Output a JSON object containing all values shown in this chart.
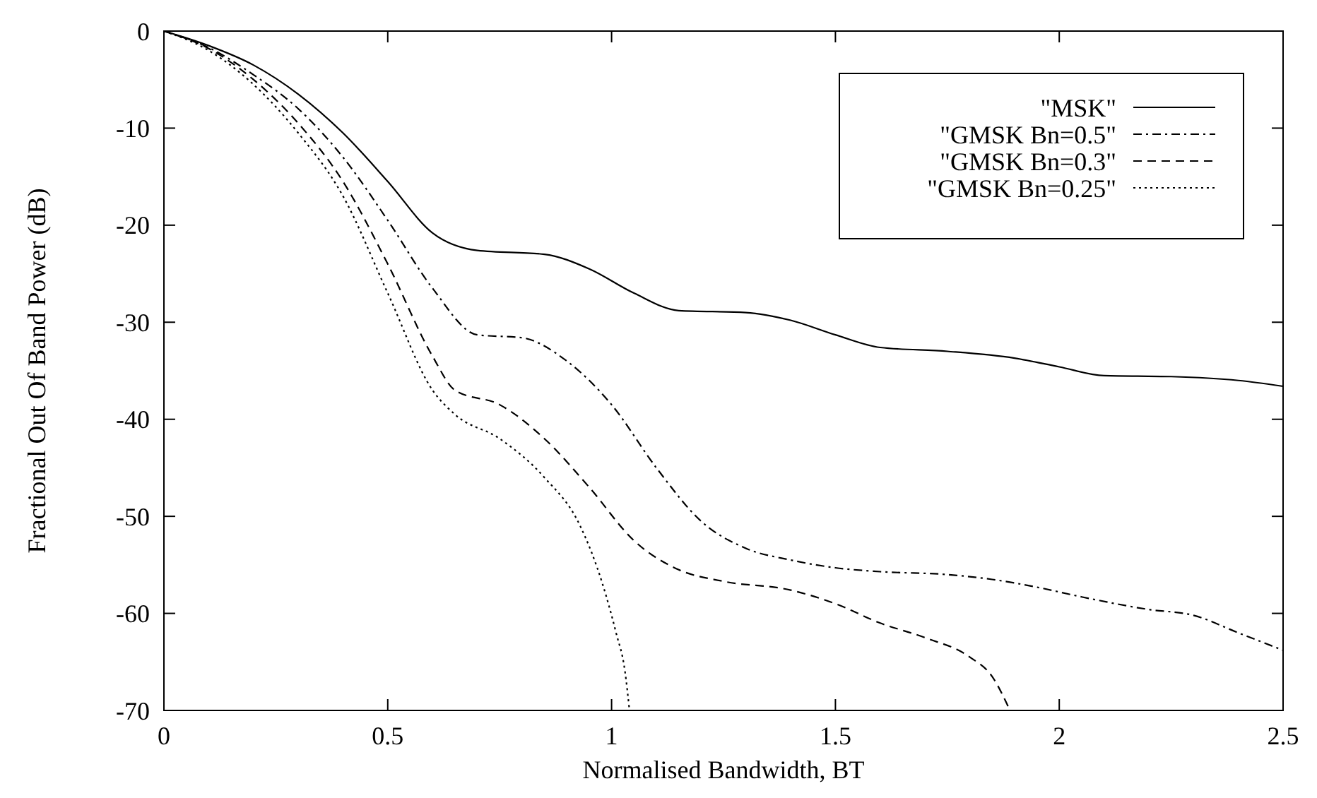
{
  "chart_data": {
    "type": "line",
    "xlabel": "Normalised Bandwidth, BT",
    "ylabel": "Fractional Out Of Band Power (dB)",
    "xlim": [
      0,
      2.5
    ],
    "ylim": [
      -70,
      0
    ],
    "xticks": [
      0,
      0.5,
      1,
      1.5,
      2,
      2.5
    ],
    "yticks": [
      -70,
      -60,
      -50,
      -40,
      -30,
      -20,
      -10,
      0
    ],
    "grid": false,
    "legend": "top right",
    "marker": "none",
    "series": [
      {
        "name": "\"MSK\"",
        "color": "#000000",
        "line_style": "solid",
        "x": [
          0,
          0.1,
          0.2,
          0.3,
          0.4,
          0.5,
          0.6,
          0.7,
          0.85,
          0.95,
          1.05,
          1.15,
          1.3,
          1.4,
          1.5,
          1.6,
          1.75,
          1.9,
          2.0,
          2.1,
          2.25,
          2.4,
          2.5
        ],
        "values": [
          0,
          -1.5,
          -3.5,
          -6.5,
          -10.5,
          -15.5,
          -20.8,
          -22.6,
          -23,
          -24.5,
          -27,
          -28.8,
          -29,
          -29.8,
          -31.3,
          -32.6,
          -33,
          -33.7,
          -34.6,
          -35.5,
          -35.6,
          -36,
          -36.6
        ]
      },
      {
        "name": "\"GMSK Bn=0.5\"",
        "color": "#000000",
        "line_style": "dashdot",
        "x": [
          0,
          0.1,
          0.2,
          0.3,
          0.4,
          0.5,
          0.6,
          0.7,
          0.8,
          0.9,
          1.0,
          1.1,
          1.2,
          1.3,
          1.4,
          1.5,
          1.6,
          1.75,
          1.85,
          1.95,
          2.05,
          2.2,
          2.3,
          2.4,
          2.5
        ],
        "values": [
          0,
          -1.7,
          -4.5,
          -8,
          -13,
          -19.5,
          -26.5,
          -31.3,
          -31.6,
          -34,
          -38.5,
          -45,
          -50.5,
          -53.3,
          -54.5,
          -55.3,
          -55.7,
          -56,
          -56.5,
          -57.3,
          -58.3,
          -59.6,
          -60.2,
          -62,
          -63.8
        ]
      },
      {
        "name": "\"GMSK Bn=0.3\"",
        "color": "#000000",
        "line_style": "dashed",
        "x": [
          0,
          0.1,
          0.2,
          0.3,
          0.4,
          0.5,
          0.6,
          0.65,
          0.75,
          0.85,
          0.95,
          1.05,
          1.15,
          1.25,
          1.4,
          1.5,
          1.6,
          1.7,
          1.8,
          1.85,
          1.89
        ],
        "values": [
          0,
          -1.8,
          -5,
          -9.5,
          -15.5,
          -24,
          -33.5,
          -37,
          -38.5,
          -42,
          -47,
          -52.5,
          -55.5,
          -56.7,
          -57.6,
          -59,
          -61,
          -62.5,
          -64.5,
          -66.5,
          -70
        ]
      },
      {
        "name": "\"GMSK Bn=0.25\"",
        "color": "#000000",
        "line_style": "dotted",
        "x": [
          0,
          0.1,
          0.2,
          0.3,
          0.4,
          0.5,
          0.6,
          0.65,
          0.75,
          0.85,
          0.93,
          0.98,
          1.01,
          1.03,
          1.04
        ],
        "values": [
          0,
          -2,
          -5.5,
          -10.5,
          -17,
          -27,
          -37,
          -39.5,
          -42,
          -46,
          -51,
          -57,
          -62,
          -66,
          -70
        ]
      }
    ]
  }
}
